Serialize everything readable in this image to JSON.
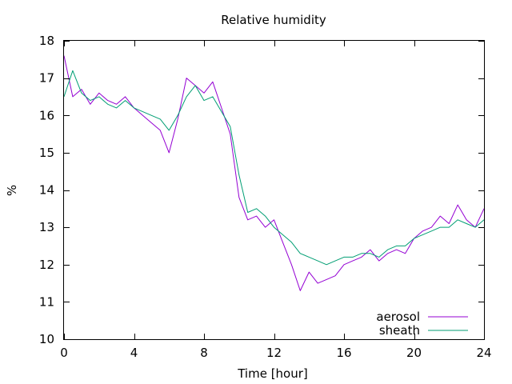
{
  "chart_data": {
    "type": "line",
    "title": "Relative humidity",
    "xlabel": "Time [hour]",
    "ylabel": "%",
    "xlim": [
      0,
      24
    ],
    "ylim": [
      10,
      18
    ],
    "x_ticks": [
      0,
      4,
      8,
      12,
      16,
      20,
      24
    ],
    "y_ticks": [
      10,
      11,
      12,
      13,
      14,
      15,
      16,
      17,
      18
    ],
    "grid": false,
    "legend_position": "bottom-right",
    "series": [
      {
        "name": "aerosol",
        "color": "#9400d3",
        "x": [
          0,
          0.5,
          1,
          1.5,
          2,
          2.5,
          3,
          3.5,
          4,
          4.5,
          5,
          5.5,
          6,
          6.5,
          7,
          7.5,
          8,
          8.5,
          9,
          9.5,
          10,
          10.5,
          11,
          11.5,
          12,
          12.5,
          13,
          13.5,
          14,
          14.5,
          15,
          15.5,
          16,
          16.5,
          17,
          17.5,
          18,
          18.5,
          19,
          19.5,
          20,
          20.5,
          21,
          21.5,
          22,
          22.5,
          23,
          23.5,
          24
        ],
        "y": [
          17.6,
          16.5,
          16.7,
          16.3,
          16.6,
          16.4,
          16.3,
          16.5,
          16.2,
          16.0,
          15.8,
          15.6,
          15.0,
          15.9,
          17.0,
          16.8,
          16.6,
          16.9,
          16.2,
          15.5,
          13.8,
          13.2,
          13.3,
          13.0,
          13.2,
          12.6,
          12.0,
          11.3,
          11.8,
          11.5,
          11.6,
          11.7,
          12.0,
          12.1,
          12.2,
          12.4,
          12.1,
          12.3,
          12.4,
          12.3,
          12.7,
          12.9,
          13.0,
          13.3,
          13.1,
          13.6,
          13.2,
          13.0,
          13.5
        ]
      },
      {
        "name": "sheath",
        "color": "#009e73",
        "x": [
          0,
          0.5,
          1,
          1.5,
          2,
          2.5,
          3,
          3.5,
          4,
          4.5,
          5,
          5.5,
          6,
          6.5,
          7,
          7.5,
          8,
          8.5,
          9,
          9.5,
          10,
          10.5,
          11,
          11.5,
          12,
          12.5,
          13,
          13.5,
          14,
          14.5,
          15,
          15.5,
          16,
          16.5,
          17,
          17.5,
          18,
          18.5,
          19,
          19.5,
          20,
          20.5,
          21,
          21.5,
          22,
          22.5,
          23,
          23.5,
          24
        ],
        "y": [
          16.5,
          17.2,
          16.6,
          16.4,
          16.5,
          16.3,
          16.2,
          16.4,
          16.2,
          16.1,
          16.0,
          15.9,
          15.6,
          16.0,
          16.5,
          16.8,
          16.4,
          16.5,
          16.1,
          15.7,
          14.4,
          13.4,
          13.5,
          13.3,
          13.0,
          12.8,
          12.6,
          12.3,
          12.2,
          12.1,
          12.0,
          12.1,
          12.2,
          12.2,
          12.3,
          12.3,
          12.2,
          12.4,
          12.5,
          12.5,
          12.7,
          12.8,
          12.9,
          13.0,
          13.0,
          13.2,
          13.1,
          13.0,
          13.2
        ]
      }
    ]
  }
}
